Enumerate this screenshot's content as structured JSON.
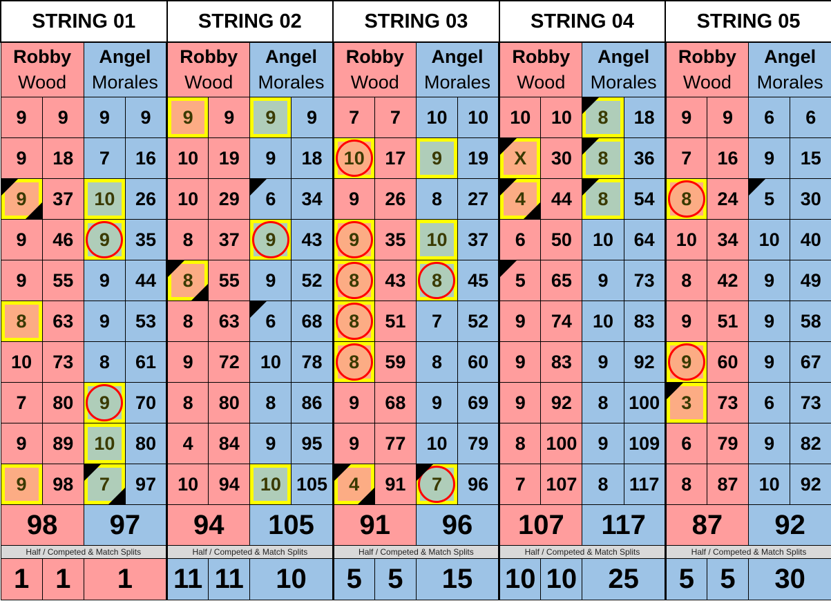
{
  "colors": {
    "robby": "#ff9d9d",
    "angel": "#9dc3e6",
    "highlight_border": "#ffff00",
    "circle": "#ff0000"
  },
  "players": {
    "robby": {
      "first": "Robby",
      "last": "Wood"
    },
    "angel": {
      "first": "Angel",
      "last": "Morales"
    }
  },
  "split_label": "Half / Competed & Match Splits",
  "flag_legend": {
    "y": "yellow-highlight",
    "c": "red-circle",
    "t": "black-corner-top-left",
    "b": "black-corner-bottom-right"
  },
  "strings": [
    {
      "title": "STRING 01",
      "robby": [
        [
          9,
          9,
          ""
        ],
        [
          9,
          18,
          ""
        ],
        [
          9,
          37,
          "ytb"
        ],
        [
          9,
          46,
          ""
        ],
        [
          9,
          55,
          ""
        ],
        [
          8,
          63,
          "y"
        ],
        [
          10,
          73,
          ""
        ],
        [
          7,
          80,
          ""
        ],
        [
          9,
          89,
          ""
        ],
        [
          9,
          98,
          "y"
        ]
      ],
      "angel": [
        [
          9,
          9,
          ""
        ],
        [
          7,
          16,
          ""
        ],
        [
          10,
          26,
          "y"
        ],
        [
          9,
          35,
          "yc"
        ],
        [
          9,
          44,
          ""
        ],
        [
          9,
          53,
          ""
        ],
        [
          8,
          61,
          ""
        ],
        [
          9,
          70,
          "yc"
        ],
        [
          10,
          80,
          "y"
        ],
        [
          7,
          97,
          "ytb"
        ]
      ],
      "total_robby": 98,
      "total_angel": 97,
      "splits": [
        1,
        1,
        1
      ],
      "splits_color": "pink"
    },
    {
      "title": "STRING 02",
      "robby": [
        [
          9,
          9,
          "y"
        ],
        [
          10,
          19,
          ""
        ],
        [
          10,
          29,
          ""
        ],
        [
          8,
          37,
          ""
        ],
        [
          8,
          55,
          "ytb"
        ],
        [
          8,
          63,
          ""
        ],
        [
          9,
          72,
          ""
        ],
        [
          8,
          80,
          ""
        ],
        [
          4,
          84,
          ""
        ],
        [
          10,
          94,
          ""
        ]
      ],
      "angel": [
        [
          9,
          9,
          "y"
        ],
        [
          9,
          18,
          ""
        ],
        [
          6,
          34,
          "t"
        ],
        [
          9,
          43,
          "yc"
        ],
        [
          9,
          52,
          ""
        ],
        [
          6,
          68,
          "t"
        ],
        [
          10,
          78,
          ""
        ],
        [
          8,
          86,
          ""
        ],
        [
          9,
          95,
          ""
        ],
        [
          10,
          105,
          "y"
        ]
      ],
      "total_robby": 94,
      "total_angel": 105,
      "splits": [
        11,
        11,
        10
      ],
      "splits_color": "blue"
    },
    {
      "title": "STRING 03",
      "robby": [
        [
          7,
          7,
          ""
        ],
        [
          10,
          17,
          "yc"
        ],
        [
          9,
          26,
          ""
        ],
        [
          9,
          35,
          "yc"
        ],
        [
          8,
          43,
          "yc"
        ],
        [
          8,
          51,
          "yc"
        ],
        [
          8,
          59,
          "yc"
        ],
        [
          9,
          68,
          ""
        ],
        [
          9,
          77,
          ""
        ],
        [
          4,
          91,
          "ytb"
        ]
      ],
      "angel": [
        [
          10,
          10,
          ""
        ],
        [
          9,
          19,
          "y"
        ],
        [
          8,
          27,
          ""
        ],
        [
          10,
          37,
          "y"
        ],
        [
          8,
          45,
          "yc"
        ],
        [
          7,
          52,
          ""
        ],
        [
          8,
          60,
          ""
        ],
        [
          9,
          69,
          ""
        ],
        [
          10,
          79,
          ""
        ],
        [
          7,
          96,
          "yct"
        ]
      ],
      "total_robby": 91,
      "total_angel": 96,
      "splits": [
        5,
        5,
        15
      ],
      "splits_color": "blue"
    },
    {
      "title": "STRING 04",
      "robby": [
        [
          10,
          10,
          ""
        ],
        [
          "X",
          30,
          "yt"
        ],
        [
          4,
          44,
          "ytb"
        ],
        [
          6,
          50,
          ""
        ],
        [
          5,
          65,
          "t"
        ],
        [
          9,
          74,
          ""
        ],
        [
          9,
          83,
          ""
        ],
        [
          9,
          92,
          ""
        ],
        [
          8,
          100,
          ""
        ],
        [
          7,
          107,
          ""
        ]
      ],
      "angel": [
        [
          8,
          18,
          "yt"
        ],
        [
          8,
          36,
          "yt"
        ],
        [
          8,
          54,
          "yt"
        ],
        [
          10,
          64,
          ""
        ],
        [
          9,
          73,
          ""
        ],
        [
          10,
          83,
          ""
        ],
        [
          9,
          92,
          ""
        ],
        [
          8,
          100,
          ""
        ],
        [
          9,
          109,
          ""
        ],
        [
          8,
          117,
          ""
        ]
      ],
      "total_robby": 107,
      "total_angel": 117,
      "splits": [
        10,
        10,
        25
      ],
      "splits_color": "blue"
    },
    {
      "title": "STRING 05",
      "robby": [
        [
          9,
          9,
          ""
        ],
        [
          7,
          16,
          ""
        ],
        [
          8,
          24,
          "yc"
        ],
        [
          10,
          34,
          ""
        ],
        [
          8,
          42,
          ""
        ],
        [
          9,
          51,
          ""
        ],
        [
          9,
          60,
          "yc"
        ],
        [
          3,
          73,
          "yt"
        ],
        [
          6,
          79,
          ""
        ],
        [
          8,
          87,
          ""
        ]
      ],
      "angel": [
        [
          6,
          6,
          ""
        ],
        [
          9,
          15,
          ""
        ],
        [
          5,
          30,
          "t"
        ],
        [
          10,
          40,
          ""
        ],
        [
          9,
          49,
          ""
        ],
        [
          9,
          58,
          ""
        ],
        [
          9,
          67,
          ""
        ],
        [
          6,
          73,
          ""
        ],
        [
          9,
          82,
          ""
        ],
        [
          10,
          92,
          ""
        ]
      ],
      "total_robby": 87,
      "total_angel": 92,
      "splits": [
        5,
        5,
        30
      ],
      "splits_color": "blue"
    }
  ]
}
